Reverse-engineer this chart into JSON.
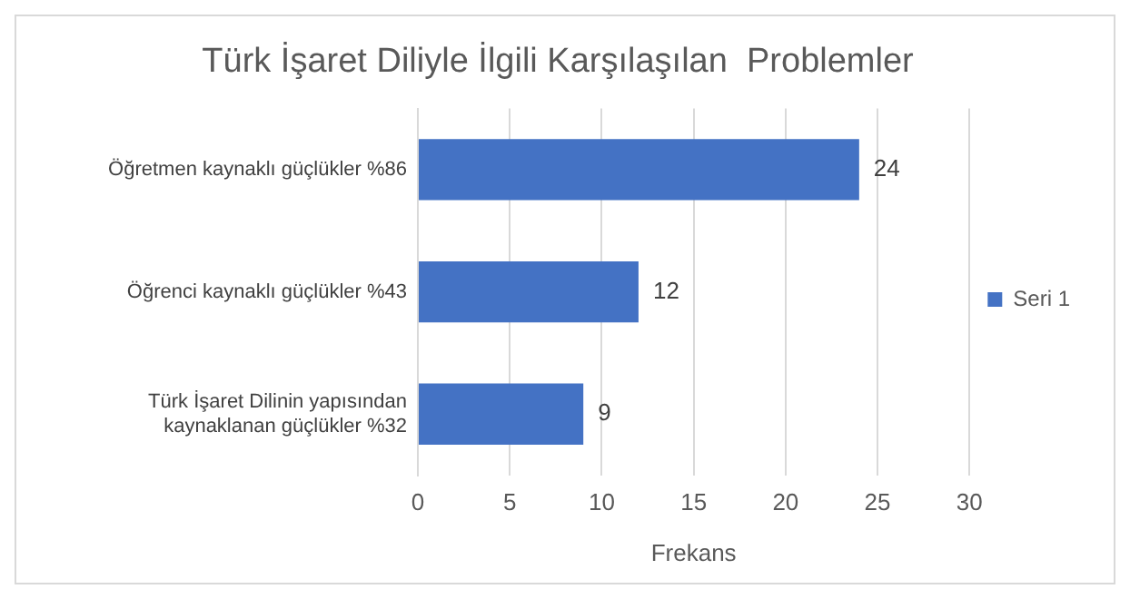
{
  "chart_data": {
    "type": "bar",
    "orientation": "horizontal",
    "title": "Türk İşaret Diliyle İlgili Karşılaşılan  Problemler",
    "xlabel": "Frekans",
    "categories": [
      "Öğretmen kaynaklı güçlükler %86",
      "Öğrenci kaynaklı güçlükler %43",
      "Türk İşaret Dilinin yapısından kaynaklanan güçlükler %32"
    ],
    "series": [
      {
        "name": "Seri 1",
        "color": "#4472c4",
        "values": [
          24,
          12,
          9
        ]
      }
    ],
    "xlim": [
      0,
      30
    ],
    "xticks": [
      0,
      5,
      10,
      15,
      20,
      25,
      30
    ],
    "grid": "x",
    "legend": "right",
    "data_labels": true
  }
}
